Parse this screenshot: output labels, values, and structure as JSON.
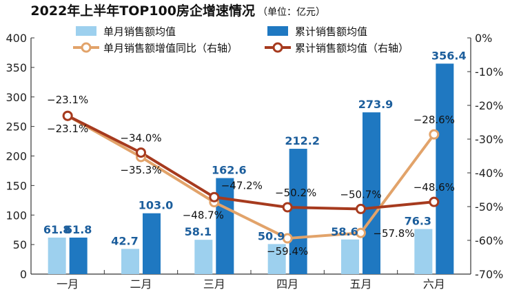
{
  "chart_data": {
    "type": "bar+line",
    "title": "2022年上半年TOP100房企增速情况",
    "subtitle": "（单位：亿元）",
    "categories": [
      "一月",
      "二月",
      "三月",
      "四月",
      "五月",
      "六月"
    ],
    "y_left": {
      "ylim": [
        0,
        400
      ],
      "ticks": [
        "0",
        "50",
        "100",
        "150",
        "200",
        "250",
        "300",
        "350",
        "400"
      ]
    },
    "y_right": {
      "ylim": [
        -70,
        0
      ],
      "ticks": [
        "0%",
        "-10%",
        "-20%",
        "-30%",
        "-40%",
        "-50%",
        "-60%",
        "-70%"
      ]
    },
    "series": [
      {
        "name": "单月销售额均值",
        "kind": "bar",
        "axis": "left",
        "color": "#9dd0ee",
        "values": [
          61.8,
          42.7,
          58.1,
          50.9,
          58.6,
          76.3
        ],
        "labels": [
          "61.8",
          "42.7",
          "58.1",
          "50.9",
          "58.6",
          "76.3"
        ]
      },
      {
        "name": "累计销售额均值",
        "kind": "bar",
        "axis": "left",
        "color": "#1f78c1",
        "values": [
          61.8,
          103.0,
          162.6,
          212.2,
          273.9,
          356.4
        ],
        "labels": [
          "61.8",
          "103.0",
          "162.6",
          "212.2",
          "273.9",
          "356.4"
        ]
      },
      {
        "name": "单月销售额增值同比（右轴）",
        "kind": "line",
        "axis": "right",
        "color": "#e2a36a",
        "values": [
          -23.1,
          -35.3,
          -48.7,
          -59.4,
          -57.8,
          -28.6
        ],
        "labels": [
          "−23.1%",
          "−35.3%",
          "−48.7%",
          "−59.4%",
          "−57.8%",
          "−28.6%"
        ]
      },
      {
        "name": "累计销售额均值（右轴）",
        "kind": "line",
        "axis": "right",
        "color": "#a63a1e",
        "values": [
          -23.1,
          -34.0,
          -47.2,
          -50.2,
          -50.7,
          -48.6
        ],
        "labels": [
          "−23.1%",
          "−34.0%",
          "−47.2%",
          "−50.2%",
          "−50.7%",
          "−48.6%"
        ]
      }
    ],
    "legend_placement": "top",
    "grid": false
  }
}
